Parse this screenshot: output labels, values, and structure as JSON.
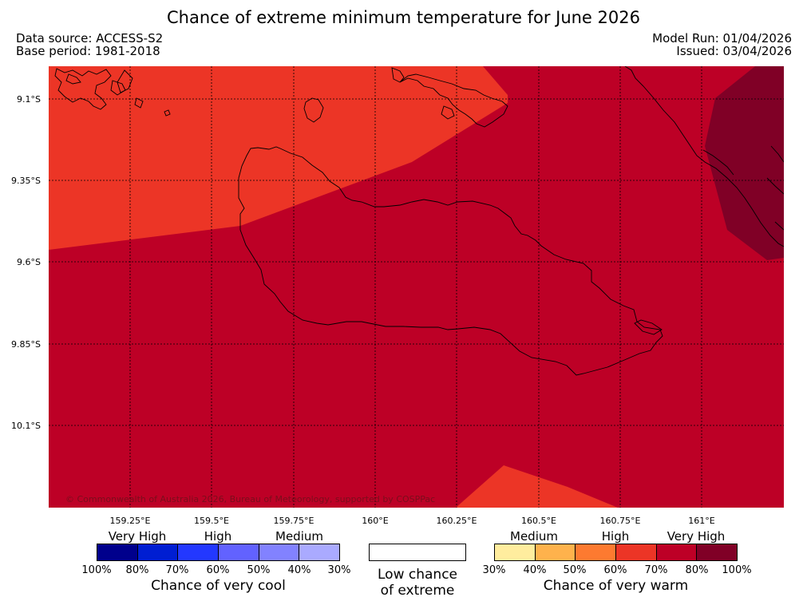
{
  "header": {
    "title": "Chance of extreme minimum temperature for June 2026",
    "data_source": "Data source: ACCESS-S2",
    "base_period": "Base period: 1981-2018",
    "model_run": "Model Run: 01/04/2026",
    "issued": "Issued: 03/04/2026"
  },
  "map": {
    "lat_labels": [
      "9.1°S",
      "9.35°S",
      "9.6°S",
      "9.85°S",
      "10.1°S"
    ],
    "lon_labels": [
      "159.25°E",
      "159.5°E",
      "159.75°E",
      "160°E",
      "160.25°E",
      "160.5°E",
      "160.75°E",
      "161°E"
    ],
    "copyright": "© Commonwealth of Australia 2026, Bureau of Meteorology, supported by COSPPac",
    "colors": {
      "warm_60_70": "#ec3526",
      "warm_70_80": "#bd0026",
      "warm_80_100": "#800026"
    }
  },
  "legend": {
    "cool": {
      "categories": [
        "Very High",
        "High",
        "Medium"
      ],
      "percents": [
        "100%",
        "80%",
        "70%",
        "60%",
        "50%",
        "40%",
        "30%"
      ],
      "caption": "Chance of very cool",
      "colors": [
        "#00008c",
        "#001ed2",
        "#2338ff",
        "#6262ff",
        "#8282ff",
        "#aaaaff"
      ]
    },
    "low": {
      "caption_line1": "Low chance",
      "caption_line2": "of extreme",
      "color": "#ffffff"
    },
    "warm": {
      "categories": [
        "Medium",
        "High",
        "Very High"
      ],
      "percents": [
        "30%",
        "40%",
        "50%",
        "60%",
        "70%",
        "80%",
        "100%"
      ],
      "caption": "Chance of very warm",
      "colors": [
        "#ffed9e",
        "#feb24c",
        "#fd7a30",
        "#ec3526",
        "#bd0026",
        "#800026"
      ]
    }
  }
}
